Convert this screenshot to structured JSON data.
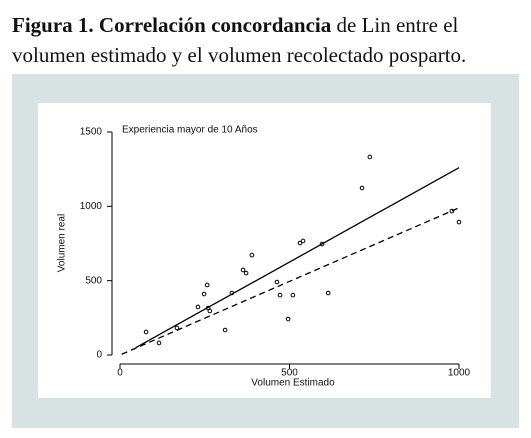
{
  "caption": {
    "bold": "Figura 1. Correlación concordancia",
    "text": " de Lin entre el volumen estimado y el volumen recolectado posparto."
  },
  "chart_data": {
    "type": "scatter",
    "annotation": "Experiencia mayor de 10 Años",
    "xlabel": "Volumen Estimado",
    "ylabel": "Volumen real",
    "xlim": [
      0,
      1000
    ],
    "ylim": [
      0,
      1500
    ],
    "xticks": [
      0,
      500,
      1000
    ],
    "yticks": [
      0,
      500,
      1000,
      1500
    ],
    "series": [
      {
        "type": "scatter",
        "color": "#000000",
        "x": [
          77,
          115,
          168,
          230,
          248,
          257,
          260,
          265,
          310,
          330,
          363,
          372,
          389,
          463,
          472,
          496,
          510,
          531,
          540,
          596,
          614,
          714,
          737,
          979,
          1000
        ],
        "values": [
          155,
          81,
          182,
          323,
          410,
          471,
          316,
          296,
          168,
          417,
          572,
          551,
          672,
          491,
          403,
          242,
          403,
          753,
          767,
          746,
          417,
          1123,
          1332,
          968,
          894
        ]
      },
      {
        "type": "line",
        "color": "#000000",
        "x": [
          47,
          1000
        ],
        "values": [
          50,
          1260
        ]
      },
      {
        "type": "line",
        "color": "#000000",
        "dash": true,
        "x": [
          5,
          1000
        ],
        "values": [
          5,
          990
        ]
      }
    ]
  }
}
